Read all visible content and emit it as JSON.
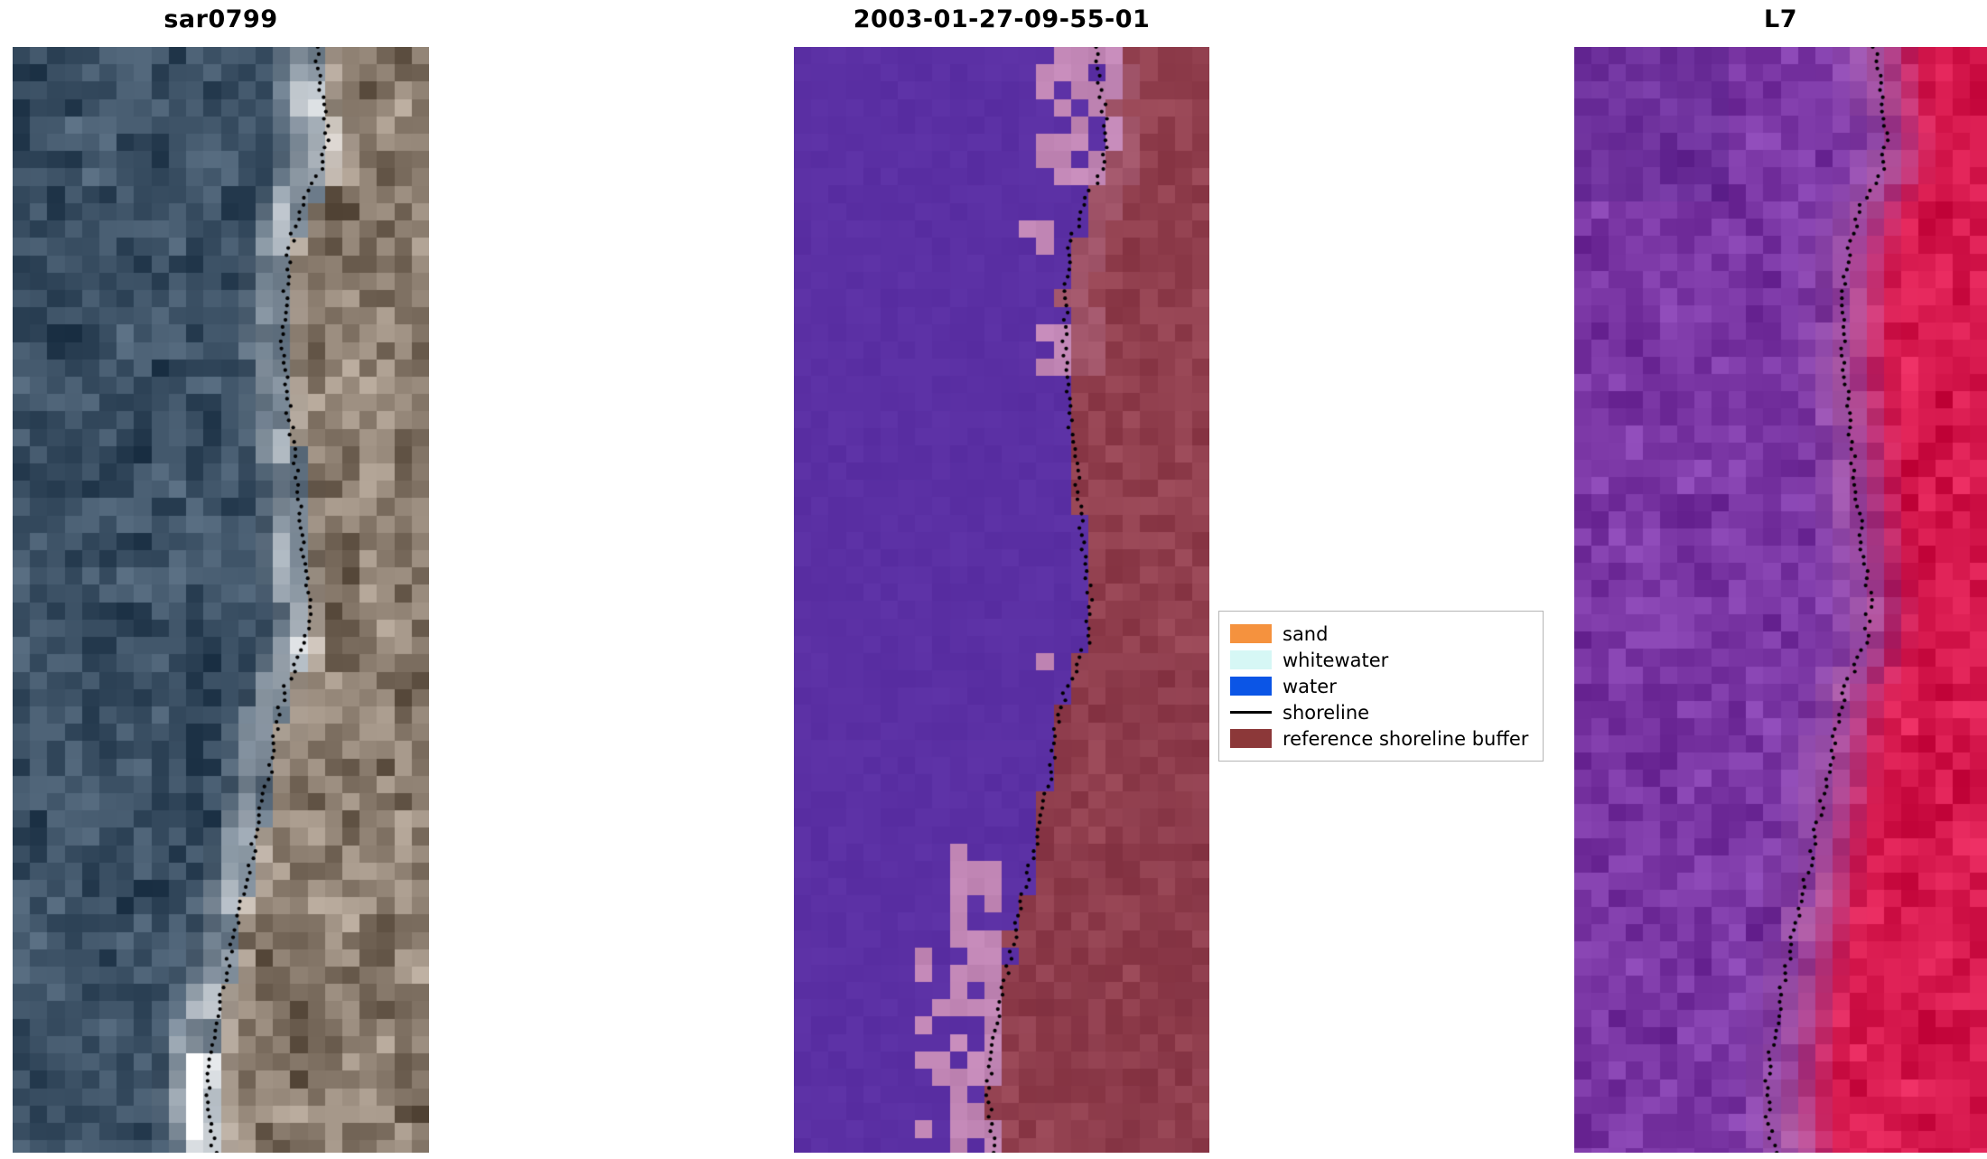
{
  "figure": {
    "background": "#ffffff",
    "panels": [
      {
        "id": "sar",
        "title": "sar0799"
      },
      {
        "id": "classified",
        "title": "2003-01-27-09-55-01"
      },
      {
        "id": "l7",
        "title": "L7"
      }
    ],
    "legend": {
      "items": [
        {
          "label": "sand",
          "swatch": "rect",
          "color": "#f5923e"
        },
        {
          "label": "whitewater",
          "swatch": "rect",
          "color": "#d6f7f5"
        },
        {
          "label": "water",
          "swatch": "rect",
          "color": "#0b55e6"
        },
        {
          "label": "shoreline",
          "swatch": "line",
          "color": "#000000"
        },
        {
          "label": "reference shoreline buffer",
          "swatch": "rect",
          "color": "#8c3839"
        }
      ]
    }
  },
  "render": {
    "sar": {
      "sea": "#3a4f63",
      "land": "#8a7c6e",
      "bright": "#ffffff"
    },
    "classified": {
      "water": "#5b30a4",
      "buffer": "#92404f",
      "patch": "#c287b6"
    },
    "l7": {
      "purple": "#7b37a5",
      "red": "#d7194e",
      "pink": "#d782aa"
    },
    "shoreline_color": "#000000"
  },
  "chart_data": {
    "type": "image-panels",
    "panels": [
      {
        "title": "sar0799",
        "description": "SAR satellite image crop of a coastline; dark blue-grey sea on the left, bright white surf band along the coast, grey-brown land on the right, detected shoreline drawn as a black dotted line"
      },
      {
        "title": "2003-01-27-09-55-01",
        "description": "Classified optical image for date 2003-01-27 09:55:01; water class shown purple on the left, mauve sand patches along the coast, dark-red reference shoreline buffer on the right, shoreline as black dotted line"
      },
      {
        "title": "L7",
        "description": "Landsat 7 false-colour crop; purple sea on the left grading to red land on the right, shoreline as black dotted line"
      }
    ],
    "legend_entries": [
      "sand",
      "whitewater",
      "water",
      "shoreline",
      "reference shoreline buffer"
    ],
    "legend_position": "center-right between second and third panels"
  }
}
